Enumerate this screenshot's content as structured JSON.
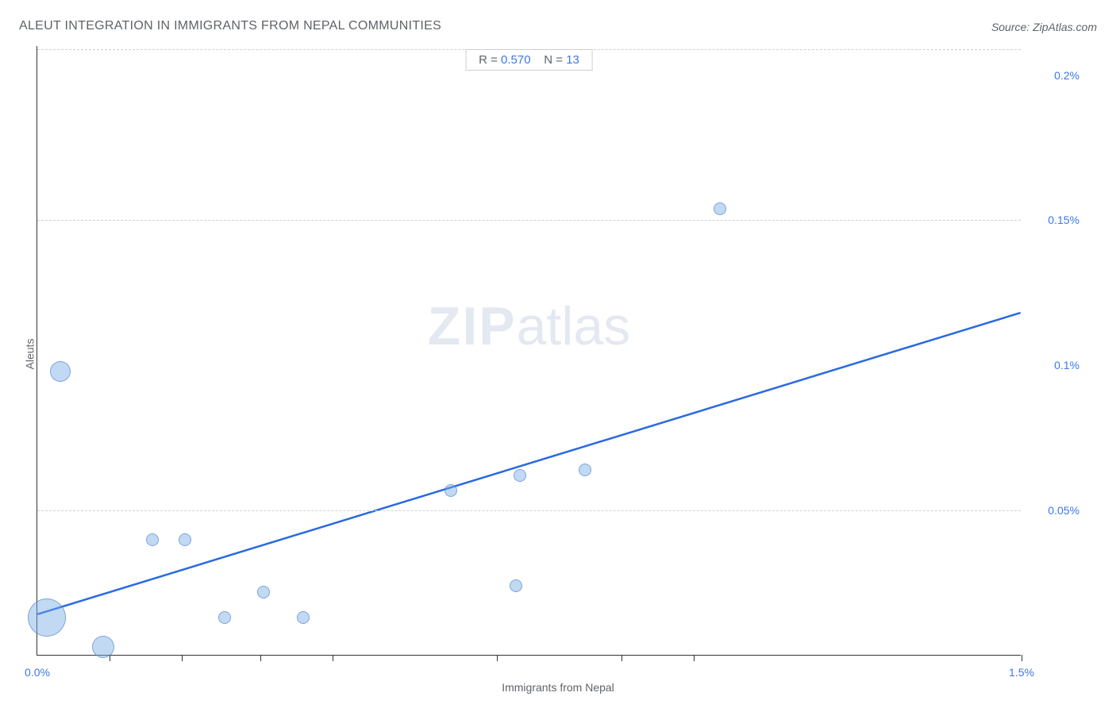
{
  "title": "ALEUT INTEGRATION IN IMMIGRANTS FROM NEPAL COMMUNITIES",
  "source": "Source: ZipAtlas.com",
  "chart": {
    "type": "scatter",
    "xlabel": "Immigrants from Nepal",
    "ylabel": "Aleuts",
    "xlim_min": 0.0,
    "xlim_max": 1.5,
    "ylim_min": 0.0,
    "ylim_max": 0.21,
    "x_tick_labels": [
      "0.0%",
      "1.5%"
    ],
    "x_tick_positions": [
      0.0,
      1.5
    ],
    "x_minor_ticks": [
      0.11,
      0.22,
      0.34,
      0.45,
      0.7,
      0.89,
      1.0,
      1.5
    ],
    "y_gridlines": [
      0.05,
      0.15,
      0.209
    ],
    "y_tick_labels": [
      "0.05%",
      "0.1%",
      "0.15%",
      "0.2%"
    ],
    "y_tick_positions": [
      0.05,
      0.1,
      0.15,
      0.2
    ],
    "points": [
      {
        "x": 0.015,
        "y": 0.013,
        "r": 24
      },
      {
        "x": 0.035,
        "y": 0.098,
        "r": 13
      },
      {
        "x": 0.1,
        "y": 0.003,
        "r": 14
      },
      {
        "x": 0.175,
        "y": 0.04,
        "r": 8
      },
      {
        "x": 0.225,
        "y": 0.04,
        "r": 8
      },
      {
        "x": 0.285,
        "y": 0.013,
        "r": 8
      },
      {
        "x": 0.345,
        "y": 0.022,
        "r": 8
      },
      {
        "x": 0.405,
        "y": 0.013,
        "r": 8
      },
      {
        "x": 0.63,
        "y": 0.057,
        "r": 8
      },
      {
        "x": 0.73,
        "y": 0.024,
        "r": 8
      },
      {
        "x": 0.735,
        "y": 0.062,
        "r": 8
      },
      {
        "x": 0.835,
        "y": 0.064,
        "r": 8
      },
      {
        "x": 1.04,
        "y": 0.154,
        "r": 8
      }
    ],
    "trend_color": "#2a6ae0",
    "trend_width": 2.5,
    "trend_x1": 0.0,
    "trend_y1": 0.014,
    "trend_x2": 1.5,
    "trend_y2": 0.118,
    "bubble_fill": "rgba(120,170,230,0.45)",
    "bubble_stroke": "rgba(70,120,200,0.55)",
    "grid_color": "#d0d0d0",
    "axis_color": "#333333",
    "background": "#ffffff",
    "label_color": "#5f6368",
    "tick_label_color": "#3b78e7",
    "title_fontsize": 16,
    "label_fontsize": 14,
    "watermark_text_bold": "ZIP",
    "watermark_text_rest": "atlas",
    "stats": {
      "r_label": "R = ",
      "r_value": "0.570",
      "n_label": "N = ",
      "n_value": "13"
    }
  }
}
